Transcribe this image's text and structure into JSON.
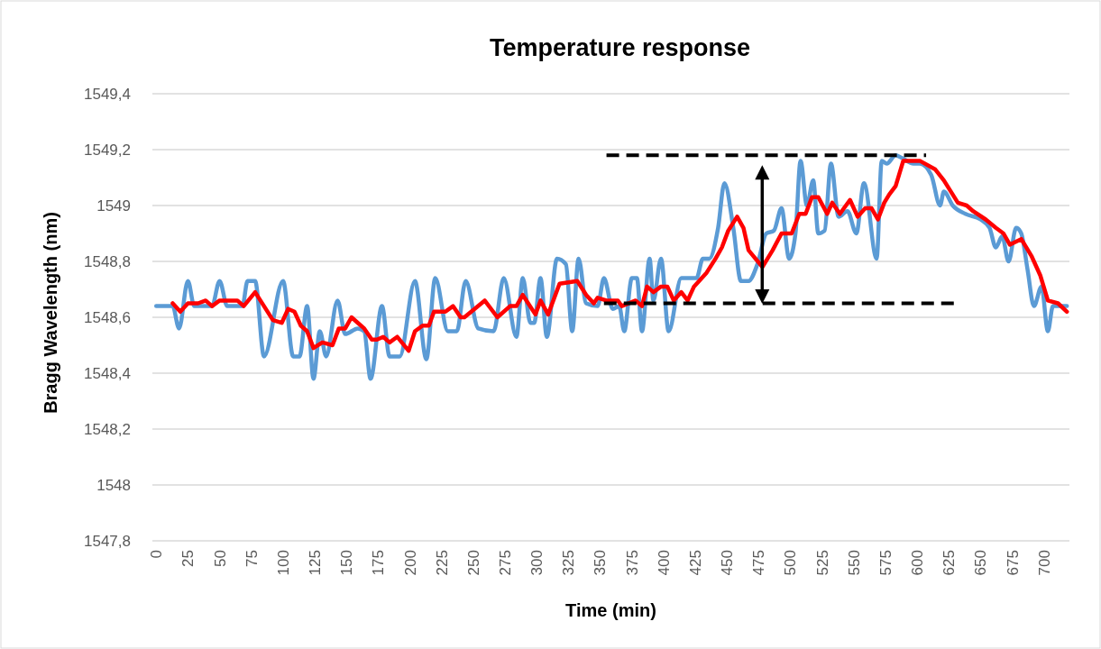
{
  "chart_data": {
    "type": "line",
    "title": "Temperature response",
    "xlabel": "Time (min)",
    "ylabel": "Bragg Wavelength (nm)",
    "xlim": [
      -3,
      720
    ],
    "xticks": [
      0,
      25,
      50,
      75,
      100,
      125,
      150,
      175,
      200,
      225,
      250,
      275,
      300,
      325,
      350,
      375,
      400,
      425,
      450,
      475,
      500,
      525,
      550,
      575,
      600,
      625,
      650,
      675,
      700
    ],
    "ylim": [
      1547.8,
      1549.4
    ],
    "yticks": [
      {
        "value": 1547.8,
        "label": "1547,8"
      },
      {
        "value": 1548,
        "label": "1548"
      },
      {
        "value": 1548.2,
        "label": "1548,2"
      },
      {
        "value": 1548.4,
        "label": "1548,4"
      },
      {
        "value": 1548.6,
        "label": "1548,6"
      },
      {
        "value": 1548.8,
        "label": "1548,8"
      },
      {
        "value": 1549,
        "label": "1549"
      },
      {
        "value": 1549.2,
        "label": "1549,2"
      },
      {
        "value": 1549.4,
        "label": "1549,4"
      }
    ],
    "grid": "y",
    "marker": "none",
    "series": [
      {
        "color": "#5b9bd5",
        "line_style": "solid",
        "x": [
          0,
          13,
          18,
          25,
          30,
          44,
          50,
          56,
          68,
          72,
          78,
          85,
          100,
          108,
          113,
          119,
          124,
          129,
          134,
          143,
          149,
          159,
          164,
          169,
          178,
          184,
          192,
          204,
          213,
          220,
          230,
          237,
          244,
          254,
          266,
          274,
          284,
          289,
          295,
          298,
          303,
          308,
          316,
          323,
          328,
          333,
          339,
          348,
          353,
          360,
          365,
          369,
          375,
          379,
          383,
          389,
          392,
          398,
          404,
          414,
          426,
          431,
          436,
          443,
          448,
          455,
          461,
          467,
          474,
          481,
          487,
          493,
          499,
          504,
          508,
          513,
          518,
          522,
          527,
          532,
          538,
          545,
          552,
          558,
          568,
          572,
          576,
          583,
          588,
          597,
          602,
          611,
          618,
          621,
          628,
          638,
          650,
          657,
          662,
          667,
          672,
          678,
          682,
          687,
          692,
          698,
          703,
          707,
          718
        ],
        "values": [
          1548.64,
          1548.64,
          1548.56,
          1548.73,
          1548.64,
          1548.64,
          1548.73,
          1548.64,
          1548.64,
          1548.73,
          1548.73,
          1548.46,
          1548.73,
          1548.46,
          1548.46,
          1548.64,
          1548.38,
          1548.55,
          1548.46,
          1548.66,
          1548.54,
          1548.56,
          1548.55,
          1548.38,
          1548.64,
          1548.46,
          1548.46,
          1548.73,
          1548.45,
          1548.74,
          1548.55,
          1548.55,
          1548.73,
          1548.56,
          1548.55,
          1548.74,
          1548.53,
          1548.74,
          1548.58,
          1548.58,
          1548.74,
          1548.53,
          1548.81,
          1548.79,
          1548.55,
          1548.81,
          1548.65,
          1548.64,
          1548.74,
          1548.63,
          1548.64,
          1548.55,
          1548.74,
          1548.74,
          1548.55,
          1548.81,
          1548.66,
          1548.81,
          1548.55,
          1548.74,
          1548.74,
          1548.81,
          1548.81,
          1548.92,
          1549.08,
          1548.92,
          1548.73,
          1548.73,
          1548.79,
          1548.9,
          1548.91,
          1548.99,
          1548.81,
          1548.9,
          1549.16,
          1549.0,
          1549.09,
          1548.9,
          1548.91,
          1549.15,
          1548.96,
          1548.98,
          1548.9,
          1549.08,
          1548.81,
          1549.16,
          1549.15,
          1549.18,
          1549.17,
          1549.15,
          1549.15,
          1549.11,
          1549.0,
          1549.05,
          1549.0,
          1548.97,
          1548.95,
          1548.92,
          1548.85,
          1548.89,
          1548.8,
          1548.92,
          1548.9,
          1548.77,
          1548.64,
          1548.71,
          1548.55,
          1548.64,
          1548.64
        ]
      },
      {
        "color": "#ff0000",
        "line_style": "solid",
        "x": [
          13,
          19,
          25,
          33,
          39,
          44,
          50,
          64,
          69,
          78,
          85,
          92,
          99,
          104,
          109,
          114,
          119,
          124,
          131,
          139,
          144,
          149,
          154,
          159,
          164,
          170,
          174,
          179,
          184,
          190,
          199,
          204,
          210,
          215,
          219,
          228,
          234,
          240,
          243,
          259,
          269,
          279,
          284,
          289,
          299,
          303,
          309,
          318,
          332,
          339,
          345,
          348,
          355,
          364,
          367,
          378,
          383,
          387,
          392,
          398,
          403,
          408,
          414,
          419,
          424,
          434,
          441,
          446,
          451,
          458,
          463,
          467,
          478,
          486,
          493,
          501,
          507,
          512,
          517,
          522,
          529,
          533,
          539,
          547,
          553,
          559,
          564,
          569,
          574,
          578,
          583,
          589,
          602,
          614,
          621,
          632,
          639,
          644,
          654,
          662,
          668,
          673,
          682,
          690,
          697,
          703,
          711,
          718
        ],
        "values": [
          1548.65,
          1548.62,
          1548.65,
          1548.65,
          1548.66,
          1548.64,
          1548.66,
          1548.66,
          1548.64,
          1548.69,
          1548.64,
          1548.59,
          1548.58,
          1548.63,
          1548.62,
          1548.57,
          1548.55,
          1548.49,
          1548.51,
          1548.5,
          1548.56,
          1548.56,
          1548.6,
          1548.58,
          1548.56,
          1548.52,
          1548.52,
          1548.53,
          1548.51,
          1548.53,
          1548.48,
          1548.55,
          1548.57,
          1548.57,
          1548.62,
          1548.62,
          1548.64,
          1548.6,
          1548.6,
          1548.66,
          1548.6,
          1548.64,
          1548.64,
          1548.68,
          1548.61,
          1548.66,
          1548.61,
          1548.72,
          1548.73,
          1548.68,
          1548.65,
          1548.67,
          1548.66,
          1548.66,
          1548.64,
          1548.66,
          1548.64,
          1548.71,
          1548.69,
          1548.71,
          1548.71,
          1548.66,
          1548.69,
          1548.66,
          1548.71,
          1548.76,
          1548.81,
          1548.85,
          1548.91,
          1548.96,
          1548.92,
          1548.84,
          1548.78,
          1548.84,
          1548.9,
          1548.9,
          1548.97,
          1548.97,
          1549.03,
          1549.03,
          1548.97,
          1549.01,
          1548.97,
          1549.02,
          1548.96,
          1548.99,
          1548.99,
          1548.95,
          1549.01,
          1549.04,
          1549.07,
          1549.16,
          1549.16,
          1549.13,
          1549.09,
          1549.01,
          1549.0,
          1548.98,
          1548.95,
          1548.92,
          1548.9,
          1548.86,
          1548.88,
          1548.82,
          1548.75,
          1548.66,
          1548.65,
          1548.62
        ]
      },
      {
        "color": "#000000",
        "line_style": "dashed",
        "x": [
          355,
          607
        ],
        "values": [
          1549.18,
          1549.18
        ]
      },
      {
        "color": "#000000",
        "line_style": "dashed",
        "x": [
          353,
          629
        ],
        "values": [
          1548.65,
          1548.65
        ]
      }
    ]
  }
}
